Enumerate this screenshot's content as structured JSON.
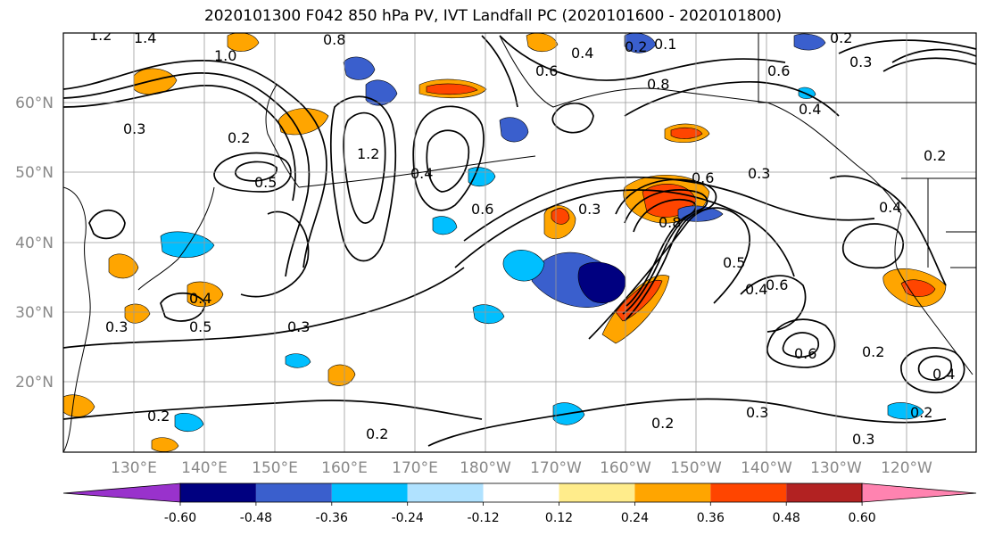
{
  "title": "2020101300 F042 850 hPa PV, IVT Landfall PC (2020101600 - 2020101800)",
  "map": {
    "lat_labels": [
      {
        "text": "60°N",
        "lat": 60
      },
      {
        "text": "50°N",
        "lat": 50
      },
      {
        "text": "40°N",
        "lat": 40
      },
      {
        "text": "30°N",
        "lat": 30
      },
      {
        "text": "20°N",
        "lat": 20
      }
    ],
    "lon_labels": [
      {
        "text": "130°E",
        "lon": 130
      },
      {
        "text": "140°E",
        "lon": 140
      },
      {
        "text": "150°E",
        "lon": 150
      },
      {
        "text": "160°E",
        "lon": 160
      },
      {
        "text": "170°E",
        "lon": 170
      },
      {
        "text": "180°W",
        "lon": 180
      },
      {
        "text": "170°W",
        "lon": 190
      },
      {
        "text": "160°W",
        "lon": 200
      },
      {
        "text": "150°W",
        "lon": 210
      },
      {
        "text": "140°W",
        "lon": 220
      },
      {
        "text": "130°W",
        "lon": 230
      },
      {
        "text": "120°W",
        "lon": 240
      }
    ],
    "contour_labels": [
      "1.2",
      "1.4",
      "0.8",
      "1.0",
      "0.2",
      "0.3",
      "0.2",
      "0.6",
      "0.4",
      "0.8",
      "0.6",
      "0.3",
      "0.2",
      "0.5",
      "0.4",
      "1.2",
      "0.3",
      "0.6",
      "0.3",
      "0.6",
      "0.8",
      "0.4",
      "0.5",
      "0.4",
      "0.6",
      "0.4",
      "0.3",
      "0.5",
      "0.3",
      "0.6",
      "0.2",
      "0.2",
      "0.3",
      "0.2",
      "0.2",
      "0.3",
      "0.4",
      "0.2",
      "0.4",
      "0.1",
      "0.2"
    ]
  },
  "colorbar": {
    "colors": [
      "#9932cc",
      "#000080",
      "#3a5fcd",
      "#00bfff",
      "#b0e2ff",
      "#ffffff",
      "#ffec8b",
      "#ffa500",
      "#ff4500",
      "#b22222",
      "#ff83b0"
    ],
    "tick_labels": [
      "-0.60",
      "-0.48",
      "-0.36",
      "-0.24",
      "-0.12",
      "0.12",
      "0.24",
      "0.36",
      "0.48",
      "0.60"
    ]
  }
}
